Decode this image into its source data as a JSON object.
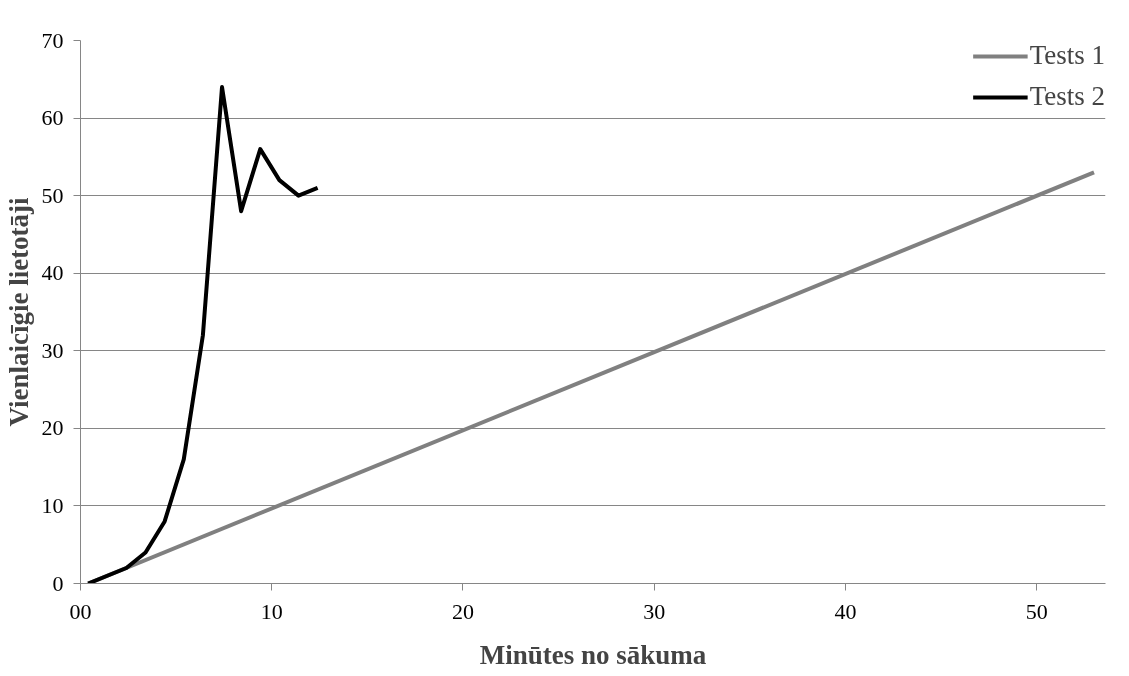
{
  "chart_data": {
    "type": "line",
    "xlabel": "Minūtes no sākuma",
    "ylabel": "Vienlaicīgie lietotāji",
    "series": [
      {
        "name": "Tests 1",
        "color": "#808080",
        "x": [
          0.4,
          53.0
        ],
        "values": [
          0,
          53
        ]
      },
      {
        "name": "Tests 2",
        "color": "#000000",
        "x": [
          0.4,
          2.4,
          3.4,
          4.4,
          5.4,
          6.4,
          7.4,
          8.4,
          9.4,
          10.4,
          11.4,
          12.4
        ],
        "values": [
          0,
          2,
          4,
          8,
          16,
          32,
          64,
          48,
          56,
          52,
          50,
          51
        ]
      }
    ],
    "xlim": [
      0,
      53.6
    ],
    "xticks": [
      {
        "value": 0,
        "label": "00"
      },
      10,
      20,
      30,
      40,
      50
    ],
    "ylim": [
      0,
      70
    ],
    "yticks": [
      0,
      10,
      20,
      30,
      40,
      50,
      60,
      70
    ],
    "grid": "y",
    "legend": "top right",
    "marker": "none",
    "line_style": "solid"
  }
}
